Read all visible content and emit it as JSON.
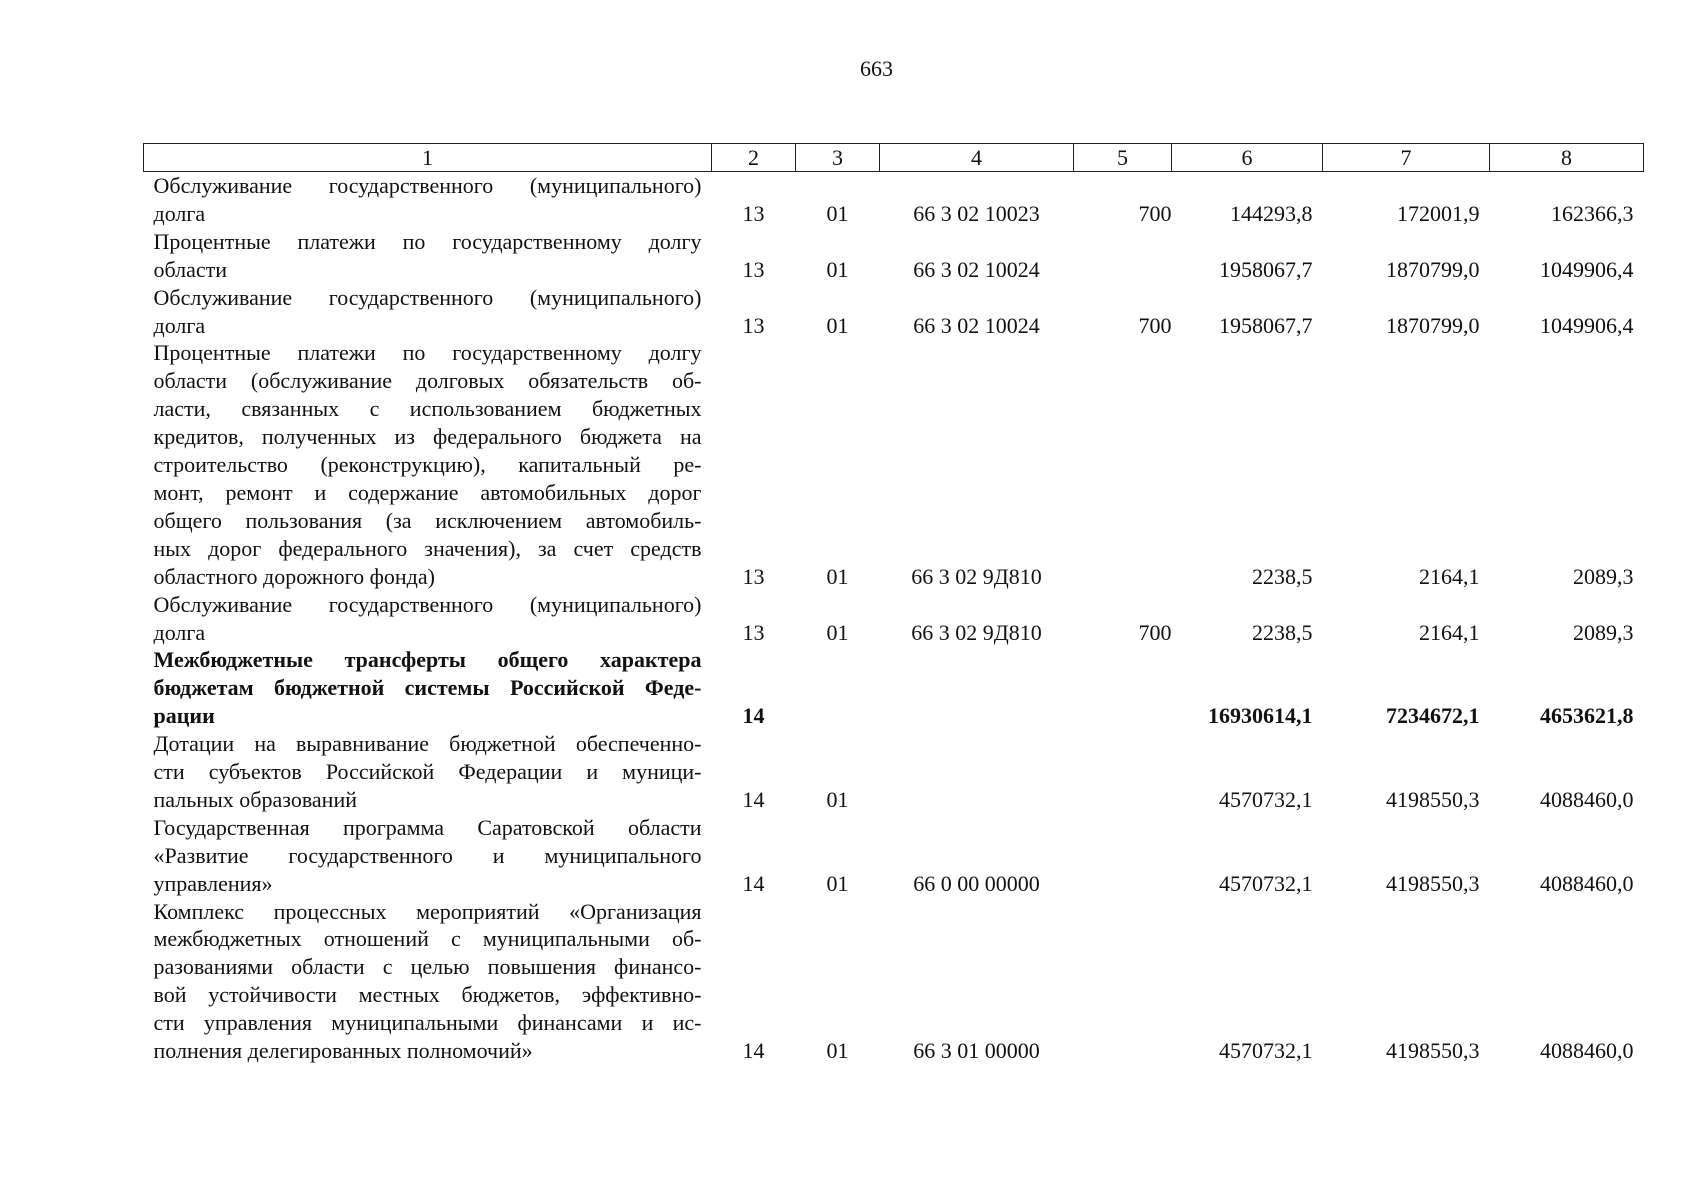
{
  "page_number": "663",
  "columns": [
    "1",
    "2",
    "3",
    "4",
    "5",
    "6",
    "7",
    "8"
  ],
  "rows": [
    {
      "lines": [
        "Обслуживание государственного (муниципального)",
        "долга"
      ],
      "c2": "13",
      "c3": "01",
      "c4": "66 3 02 10023",
      "c5": "700",
      "c6": "144293,8",
      "c7": "172001,9",
      "c8": "162366,3",
      "bold": false
    },
    {
      "lines": [
        "Процентные платежи по государственному долгу",
        "области"
      ],
      "c2": "13",
      "c3": "01",
      "c4": "66 3 02 10024",
      "c5": "",
      "c6": "1958067,7",
      "c7": "1870799,0",
      "c8": "1049906,4",
      "bold": false
    },
    {
      "lines": [
        "Обслуживание государственного (муниципального)",
        "долга"
      ],
      "c2": "13",
      "c3": "01",
      "c4": "66 3 02 10024",
      "c5": "700",
      "c6": "1958067,7",
      "c7": "1870799,0",
      "c8": "1049906,4",
      "bold": false
    },
    {
      "lines": [
        "Процентные платежи по государственному долгу",
        "области (обслуживание долговых обязательств об-",
        "ласти, связанных с использованием бюджетных",
        "кредитов, полученных из федерального бюджета на",
        "строительство (реконструкцию), капитальный ре-",
        "монт, ремонт и содержание автомобильных дорог",
        "общего пользования (за исключением автомобиль-",
        "ных дорог федерального значения), за счет средств",
        "областного дорожного фонда)"
      ],
      "c2": "13",
      "c3": "01",
      "c4": "66 3 02 9Д810",
      "c5": "",
      "c6": "2238,5",
      "c7": "2164,1",
      "c8": "2089,3",
      "bold": false
    },
    {
      "lines": [
        "Обслуживание государственного (муниципального)",
        "долга"
      ],
      "c2": "13",
      "c3": "01",
      "c4": "66 3 02 9Д810",
      "c5": "700",
      "c6": "2238,5",
      "c7": "2164,1",
      "c8": "2089,3",
      "bold": false
    },
    {
      "lines": [
        "Межбюджетные трансферты общего характера",
        "бюджетам бюджетной системы Российской Феде-",
        "рации"
      ],
      "c2": "14",
      "c3": "",
      "c4": "",
      "c5": "",
      "c6": "16930614,1",
      "c7": "7234672,1",
      "c8": "4653621,8",
      "bold": true
    },
    {
      "lines": [
        "Дотации на выравнивание бюджетной обеспеченно-",
        "сти субъектов Российской Федерации и муници-",
        "пальных образований"
      ],
      "c2": "14",
      "c3": "01",
      "c4": "",
      "c5": "",
      "c6": "4570732,1",
      "c7": "4198550,3",
      "c8": "4088460,0",
      "bold": false
    },
    {
      "lines": [
        "Государственная программа Саратовской области",
        "«Развитие государственного и муниципального",
        "управления»"
      ],
      "c2": "14",
      "c3": "01",
      "c4": "66 0 00 00000",
      "c5": "",
      "c6": "4570732,1",
      "c7": "4198550,3",
      "c8": "4088460,0",
      "bold": false
    },
    {
      "lines": [
        "Комплекс процессных мероприятий «Организация",
        "межбюджетных отношений с муниципальными об-",
        "разованиями области с целью повышения финансо-",
        "вой устойчивости местных бюджетов, эффективно-",
        "сти управления муниципальными финансами и ис-",
        "полнения делегированных полномочий»"
      ],
      "c2": "14",
      "c3": "01",
      "c4": "66 3 01 00000",
      "c5": "",
      "c6": "4570732,1",
      "c7": "4198550,3",
      "c8": "4088460,0",
      "bold": false
    }
  ]
}
